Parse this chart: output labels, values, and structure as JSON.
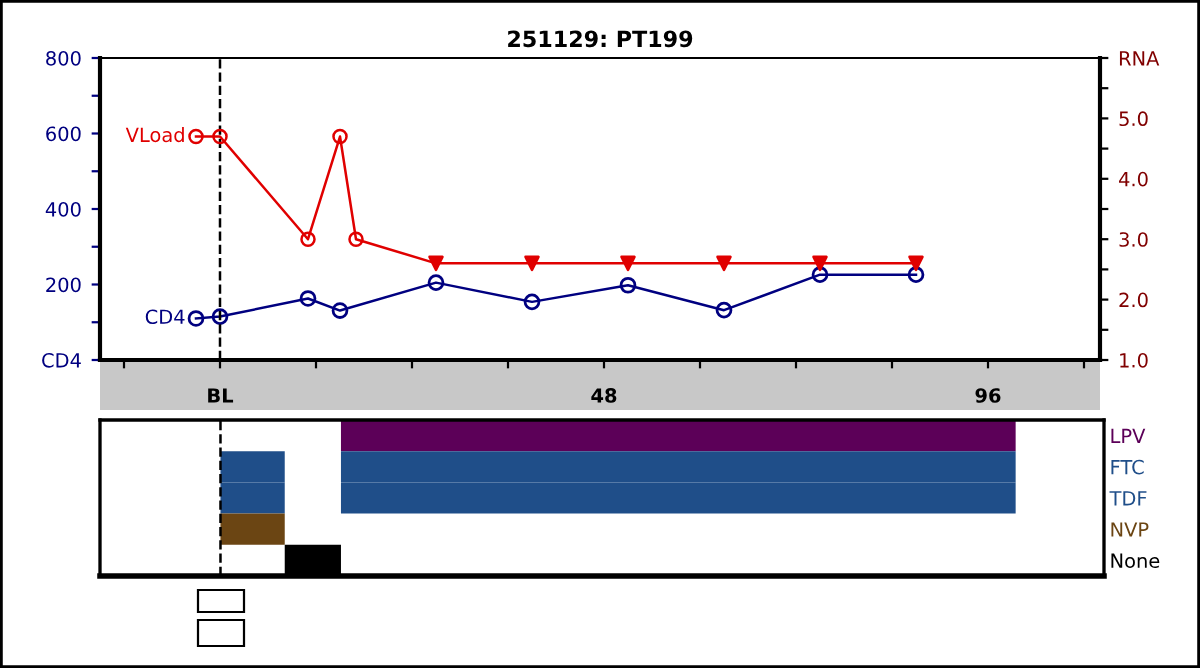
{
  "chart_data": [
    {
      "type": "line",
      "title": "251129: PT199",
      "xlim": [
        -15,
        110
      ],
      "xticks": [
        {
          "value": -12,
          "label": null
        },
        {
          "value": 0,
          "label": "BL"
        },
        {
          "value": 12,
          "label": null
        },
        {
          "value": 24,
          "label": null
        },
        {
          "value": 36,
          "label": null
        },
        48,
        {
          "value": 60,
          "label": null
        },
        {
          "value": 72,
          "label": null
        },
        {
          "value": 84,
          "label": null
        },
        96,
        {
          "value": 108,
          "label": null
        }
      ],
      "ylim": [
        0,
        800
      ],
      "yticks": [
        {
          "value": 0,
          "label": "CD4"
        },
        {
          "value": 100,
          "label": null
        },
        200,
        {
          "value": 300,
          "label": null
        },
        400,
        {
          "value": 500,
          "label": null
        },
        600,
        {
          "value": 700,
          "label": null
        },
        800
      ],
      "y2lim": [
        1.0,
        6.0
      ],
      "y2ticks": [
        {
          "value": 1.0,
          "label": "1.0"
        },
        {
          "value": 1.5,
          "label": null
        },
        {
          "value": 2.0,
          "label": "2.0"
        },
        {
          "value": 2.5,
          "label": null
        },
        {
          "value": 3.0,
          "label": "3.0"
        },
        {
          "value": 3.5,
          "label": null
        },
        {
          "value": 4.0,
          "label": "4.0"
        },
        {
          "value": 4.5,
          "label": null
        },
        {
          "value": 5.0,
          "label": "5.0"
        },
        {
          "value": 5.5,
          "label": null
        },
        {
          "value": 6.0,
          "label": "RNA"
        }
      ],
      "grid": false,
      "legend": false,
      "ref_lines": [
        {
          "axis": "x",
          "value": 0,
          "color": "#000000",
          "line_style": "dashed"
        }
      ],
      "series": [
        {
          "name": "CD4",
          "color": "#000080",
          "marker": "circle",
          "x": [
            -3,
            0,
            11,
            15,
            27,
            39,
            51,
            63,
            75,
            87
          ],
          "values": [
            110,
            115,
            163,
            131,
            205,
            154,
            198,
            132,
            226,
            226
          ]
        },
        {
          "name": "VLoad",
          "color": "#e00000",
          "axis": "y2",
          "marker": "none",
          "x": [
            -3,
            0,
            11,
            15,
            17,
            27,
            39,
            51,
            63,
            75,
            87
          ],
          "values": [
            4.7,
            4.7,
            3.0,
            4.7,
            3.0,
            2.6,
            2.6,
            2.6,
            2.6,
            2.6,
            2.6
          ]
        },
        {
          "type": "scatter",
          "color": "#e00000",
          "axis": "y2",
          "marker": "circle",
          "x": [
            -3,
            0,
            11,
            15,
            17
          ],
          "values": [
            4.7,
            4.7,
            3.0,
            4.7,
            3.0
          ]
        },
        {
          "type": "scatter",
          "color": "#e00000",
          "axis": "y2",
          "marker": "triangle",
          "x": [
            27,
            39,
            51,
            63,
            75,
            87
          ],
          "values": [
            2.6,
            2.6,
            2.6,
            2.6,
            2.6,
            2.6
          ]
        }
      ]
    },
    {
      "type": "bar",
      "orientation": "horizontal",
      "categories": [
        "LPV",
        "FTC",
        "TDF",
        "NVP",
        "None"
      ],
      "xlim": [
        -15,
        110
      ],
      "tick_labels": "y",
      "legend": false,
      "grid": false,
      "ref_lines": [
        {
          "axis": "x",
          "value": 0,
          "color": "#000000",
          "line_style": "dashed"
        }
      ],
      "series": [
        {
          "base": [
            15,
            0,
            0,
            0,
            8
          ],
          "values": [
            84,
            8,
            8,
            8,
            7
          ],
          "colors": [
            "#5c0058",
            "#1f4e89",
            "#1f4e89",
            "#6b4513",
            "#000000"
          ]
        },
        {
          "base": [
            null,
            15,
            15,
            null,
            null
          ],
          "values": [
            null,
            84,
            84,
            null,
            null
          ],
          "colors": [
            "#5c0058",
            "#1f4e89",
            "#1f4e89",
            "#6b4513",
            "#000000"
          ]
        }
      ]
    }
  ]
}
